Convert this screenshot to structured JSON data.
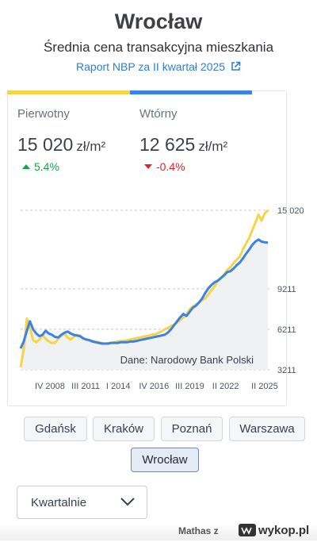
{
  "header": {
    "city": "Wrocław",
    "subtitle": "Średnia cena transakcyjna mieszkania",
    "report_prefix": "Raport NBP za ",
    "report_period": "II kwartał 2025"
  },
  "primary": {
    "label": "Pierwotny",
    "value": "15 020",
    "unit": "zł/m²",
    "change": "5.4%",
    "direction": "up",
    "color": "#f5d547"
  },
  "secondary": {
    "label": "Wtórny",
    "value": "12 625",
    "unit": "zł/m²",
    "change": "-0.4%",
    "direction": "down",
    "color": "#3b82e6"
  },
  "chart_data": {
    "type": "line",
    "source_note": "Dane: Narodowy Bank Polski",
    "y_ticks": [
      3211,
      6211,
      9211,
      15020
    ],
    "y_tick_labels": [
      "3211",
      "6211",
      "9211",
      "15 020"
    ],
    "x_tick_labels": [
      "IV 2008",
      "III 2011",
      "I 2014",
      "IV 2016",
      "III 2019",
      "II 2022",
      "II 2025"
    ],
    "ylim": [
      3211,
      15020
    ],
    "grid": true,
    "x_start": 2006.5,
    "x_end": 2025.5,
    "series": [
      {
        "name": "Pierwotny",
        "color": "#f5d547",
        "values": [
          3400,
          4700,
          7000,
          6300,
          5400,
          5250,
          5450,
          5750,
          5500,
          5300,
          5200,
          5200,
          5500,
          5700,
          5900,
          5600,
          5450,
          5650,
          5800,
          5750,
          5500,
          5450,
          5400,
          5350,
          5300,
          5250,
          5200,
          5150,
          5200,
          5200,
          5250,
          5300,
          5350,
          5350,
          5400,
          5450,
          5500,
          5550,
          5600,
          5650,
          5700,
          5750,
          5800,
          5850,
          5950,
          6050,
          6200,
          6300,
          6450,
          6550,
          6700,
          6900,
          7100,
          7300,
          7700,
          7900,
          8050,
          8200,
          8350,
          8500,
          8800,
          9100,
          9400,
          9800,
          10050,
          10250,
          10600,
          10800,
          11100,
          11350,
          11600,
          12100,
          12550,
          12950,
          13550,
          14100,
          14700,
          14250,
          14800,
          15020
        ]
      },
      {
        "name": "Wtórny",
        "color": "#3b82e6",
        "values": [
          4800,
          5300,
          6100,
          6800,
          6200,
          5900,
          5700,
          5800,
          6100,
          5900,
          5800,
          5650,
          5600,
          5800,
          5950,
          6050,
          5900,
          5800,
          5750,
          5700,
          5550,
          5450,
          5400,
          5300,
          5250,
          5200,
          5150,
          5150,
          5150,
          5200,
          5200,
          5200,
          5250,
          5250,
          5250,
          5300,
          5300,
          5350,
          5400,
          5450,
          5500,
          5550,
          5600,
          5650,
          5700,
          5750,
          5800,
          5950,
          6200,
          6500,
          6800,
          7100,
          7350,
          7200,
          7500,
          7800,
          7950,
          8200,
          8500,
          8900,
          9250,
          9500,
          9700,
          9800,
          10000,
          10200,
          10450,
          10500,
          10700,
          10950,
          11150,
          11450,
          11800,
          12100,
          12450,
          12700,
          12850,
          12700,
          12650,
          12625
        ]
      }
    ]
  },
  "cities": [
    "Gdańsk",
    "Kraków",
    "Poznań",
    "Warszawa",
    "Wrocław"
  ],
  "active_city": "Wrocław",
  "period_select": {
    "value": "Kwartalnie"
  },
  "footer": {
    "username": "Mathas z",
    "logo_text": "wykop.pl"
  }
}
